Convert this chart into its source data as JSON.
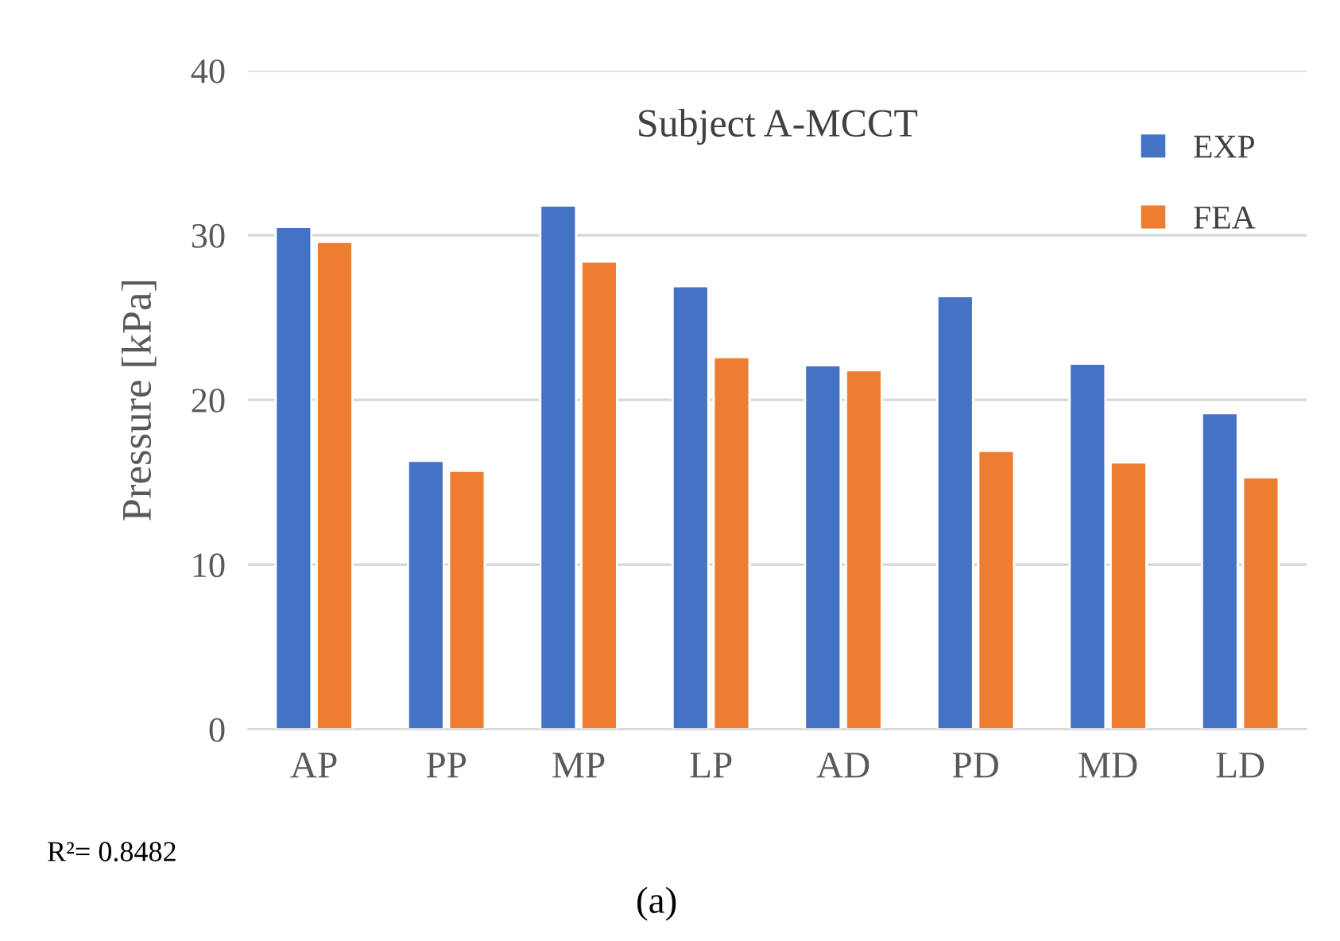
{
  "chart_data": {
    "type": "bar",
    "title": "Subject A-MCCT",
    "ylabel": "Pressure [kPa]",
    "categories": [
      "AP",
      "PP",
      "MP",
      "LP",
      "AD",
      "PD",
      "MD",
      "LD"
    ],
    "series": [
      {
        "name": "EXP",
        "color": "#4472c4",
        "values": [
          30.5,
          16.3,
          31.8,
          26.9,
          22.1,
          26.3,
          22.2,
          19.2
        ]
      },
      {
        "name": "FEA",
        "color": "#ed7d31",
        "values": [
          29.6,
          15.7,
          28.4,
          22.6,
          21.8,
          16.9,
          16.2,
          15.3
        ]
      }
    ],
    "ylim": [
      0,
      40
    ],
    "yticks": [
      0,
      10,
      20,
      30,
      40
    ],
    "grid": "y",
    "legend": "top right",
    "annotations": [
      "R²= 0.8482",
      "(a)"
    ]
  }
}
